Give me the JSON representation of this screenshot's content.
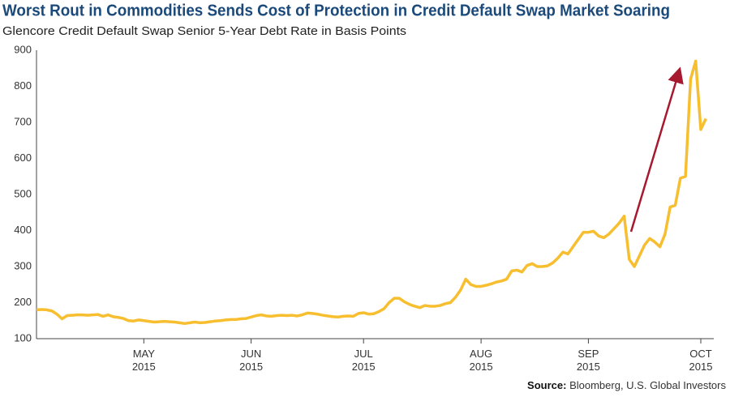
{
  "chart_data": {
    "type": "line",
    "title": "Worst Rout in Commodities Sends Cost of Protection in Credit Default Swap Market Soaring",
    "subtitle": "Glencore Credit Default Swap Senior 5-Year Debt Rate in Basis Points",
    "source_label": "Source:",
    "source": "Bloomberg, U.S. Global Investors",
    "categories": [
      null,
      null,
      null,
      null,
      null,
      null,
      null,
      null,
      null,
      null,
      null,
      null,
      null,
      null,
      null,
      null,
      null,
      null,
      null,
      null,
      null,
      "MAY 2015",
      null,
      null,
      null,
      null,
      null,
      null,
      null,
      null,
      null,
      null,
      null,
      null,
      null,
      null,
      null,
      null,
      null,
      null,
      null,
      null,
      "JUN 2015",
      null,
      null,
      null,
      null,
      null,
      null,
      null,
      null,
      null,
      null,
      null,
      null,
      null,
      null,
      null,
      null,
      null,
      null,
      null,
      null,
      null,
      "JUL 2015",
      null,
      null,
      null,
      null,
      null,
      null,
      null,
      null,
      null,
      null,
      null,
      null,
      null,
      null,
      null,
      null,
      null,
      null,
      null,
      null,
      null,
      null,
      "AUG 2015",
      null,
      null,
      null,
      null,
      null,
      null,
      null,
      null,
      null,
      null,
      null,
      null,
      null,
      null,
      null,
      null,
      null,
      null,
      null,
      null,
      "SEP 2015",
      null,
      null,
      null,
      null,
      null,
      null,
      null,
      null,
      null,
      null,
      null,
      null,
      null,
      null,
      null,
      null,
      null,
      null,
      null,
      null,
      null,
      "OCT 2015",
      null
    ],
    "series": [
      {
        "name": "Glencore CDS",
        "color": "#f7be2f",
        "values": [
          180,
          181,
          180,
          177,
          168,
          155,
          164,
          165,
          166,
          166,
          165,
          166,
          167,
          162,
          166,
          161,
          159,
          156,
          150,
          149,
          152,
          150,
          148,
          146,
          147,
          148,
          147,
          146,
          144,
          142,
          144,
          146,
          144,
          145,
          147,
          149,
          150,
          152,
          153,
          153,
          155,
          156,
          160,
          164,
          166,
          163,
          162,
          164,
          165,
          164,
          165,
          163,
          166,
          171,
          170,
          168,
          165,
          163,
          161,
          160,
          162,
          163,
          162,
          170,
          172,
          168,
          169,
          175,
          183,
          200,
          212,
          212,
          202,
          195,
          190,
          186,
          192,
          190,
          190,
          192,
          197,
          200,
          215,
          235,
          265,
          250,
          245,
          245,
          248,
          252,
          257,
          260,
          265,
          288,
          290,
          285,
          303,
          308,
          300,
          300,
          302,
          310,
          323,
          340,
          335,
          355,
          375,
          395,
          395,
          398,
          385,
          380,
          390,
          405,
          420,
          440,
          320,
          300,
          330,
          360,
          378,
          368,
          355,
          390,
          465,
          470,
          545,
          550,
          820,
          870,
          680,
          710
        ]
      }
    ],
    "ylim": [
      100,
      900
    ],
    "yticks": [
      100,
      200,
      300,
      400,
      500,
      600,
      700,
      800,
      900
    ],
    "grid": false
  }
}
